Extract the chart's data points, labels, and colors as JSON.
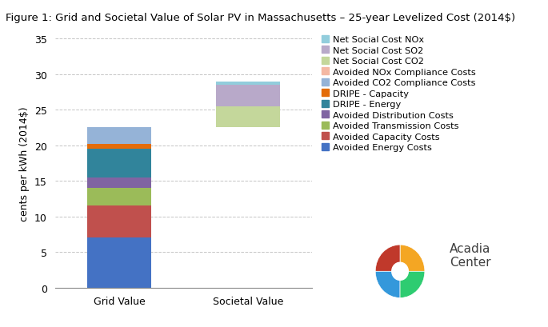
{
  "title": "Figure 1: Grid and Societal Value of Solar PV in Massachusetts – 25-year Levelized Cost (2014$)",
  "ylabel": "cents per kWh (2014$)",
  "categories": [
    "Grid Value",
    "Societal Value"
  ],
  "ylim": [
    0,
    35
  ],
  "yticks": [
    0,
    5,
    10,
    15,
    20,
    25,
    30,
    35
  ],
  "bar_width": 0.5,
  "segments": [
    {
      "label": "Avoided Energy Costs",
      "color": "#4472C4",
      "grid": 7.0,
      "societal": 0.0
    },
    {
      "label": "Avoided Capacity Costs",
      "color": "#C0504D",
      "grid": 4.5,
      "societal": 0.0
    },
    {
      "label": "Avoided Transmission Costs",
      "color": "#9BBB59",
      "grid": 2.5,
      "societal": 0.0
    },
    {
      "label": "Avoided Distribution Costs",
      "color": "#8064A2",
      "grid": 1.5,
      "societal": 0.0
    },
    {
      "label": "DRIPE - Energy",
      "color": "#31849B",
      "grid": 4.0,
      "societal": 0.0
    },
    {
      "label": "DRIPE - Capacity",
      "color": "#E36C09",
      "grid": 0.7,
      "societal": 0.0
    },
    {
      "label": "Avoided CO2 Compliance Costs",
      "color": "#95B3D7",
      "grid": 2.3,
      "societal": 0.0
    },
    {
      "label": "Avoided NOx Compliance Costs",
      "color": "#F4B8A3",
      "grid": 0.0,
      "societal": 0.0
    },
    {
      "label": "Net Social Cost CO2",
      "color": "#C4D79B",
      "grid": 0.0,
      "societal": 3.0
    },
    {
      "label": "Net Social Cost SO2",
      "color": "#B8A9C9",
      "grid": 0.0,
      "societal": 3.0
    },
    {
      "label": "Net Social Cost NOx",
      "color": "#92CDDC",
      "grid": 0.0,
      "societal": 0.5
    }
  ],
  "societal_base": 22.5,
  "background_color": "#FFFFFF",
  "grid_color": "#AAAAAA",
  "title_fontsize": 9.5,
  "axis_fontsize": 9,
  "legend_fontsize": 8.2,
  "tick_fontsize": 9
}
